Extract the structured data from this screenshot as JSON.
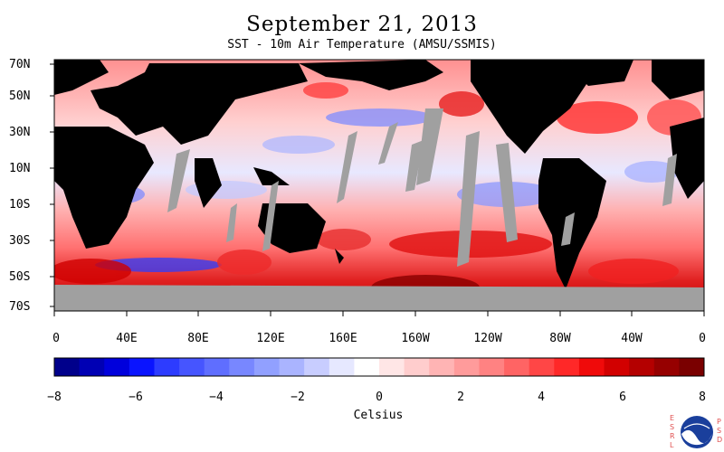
{
  "title": "September 21, 2013",
  "subtitle": "SST - 10m Air Temperature (AMSU/SSMIS)",
  "latitude_labels": [
    "70N",
    "50N",
    "30N",
    "10N",
    "10S",
    "30S",
    "50S",
    "70S"
  ],
  "longitude_labels": [
    "0",
    "40E",
    "80E",
    "120E",
    "160E",
    "160W",
    "120W",
    "80W",
    "40W",
    "0"
  ],
  "colorbar": {
    "title": "Celsius",
    "tick_labels": [
      "−8",
      "−6",
      "−4",
      "−2",
      "0",
      "2",
      "4",
      "6",
      "8"
    ],
    "range": [
      -8,
      8
    ],
    "colors": [
      "#00008b",
      "#0000b4",
      "#0000dc",
      "#0a14ff",
      "#2d3cff",
      "#4655ff",
      "#5f6eff",
      "#7887ff",
      "#91a0ff",
      "#aab4ff",
      "#c8cdff",
      "#e6e8ff",
      "#ffffff",
      "#ffe6e6",
      "#ffcdcd",
      "#ffb4b4",
      "#ff9b9b",
      "#ff8282",
      "#ff6464",
      "#ff4646",
      "#ff2828",
      "#f00a0a",
      "#d20000",
      "#b40000",
      "#960000",
      "#7a0000"
    ]
  },
  "map_legend": {
    "land_color": "#000000",
    "no_data_color": "#a0a0a0"
  },
  "logo": {
    "letters_left": [
      "E",
      "S",
      "R",
      "L"
    ],
    "letters_right": [
      "P",
      "S",
      "D"
    ],
    "text": "NOAA"
  }
}
